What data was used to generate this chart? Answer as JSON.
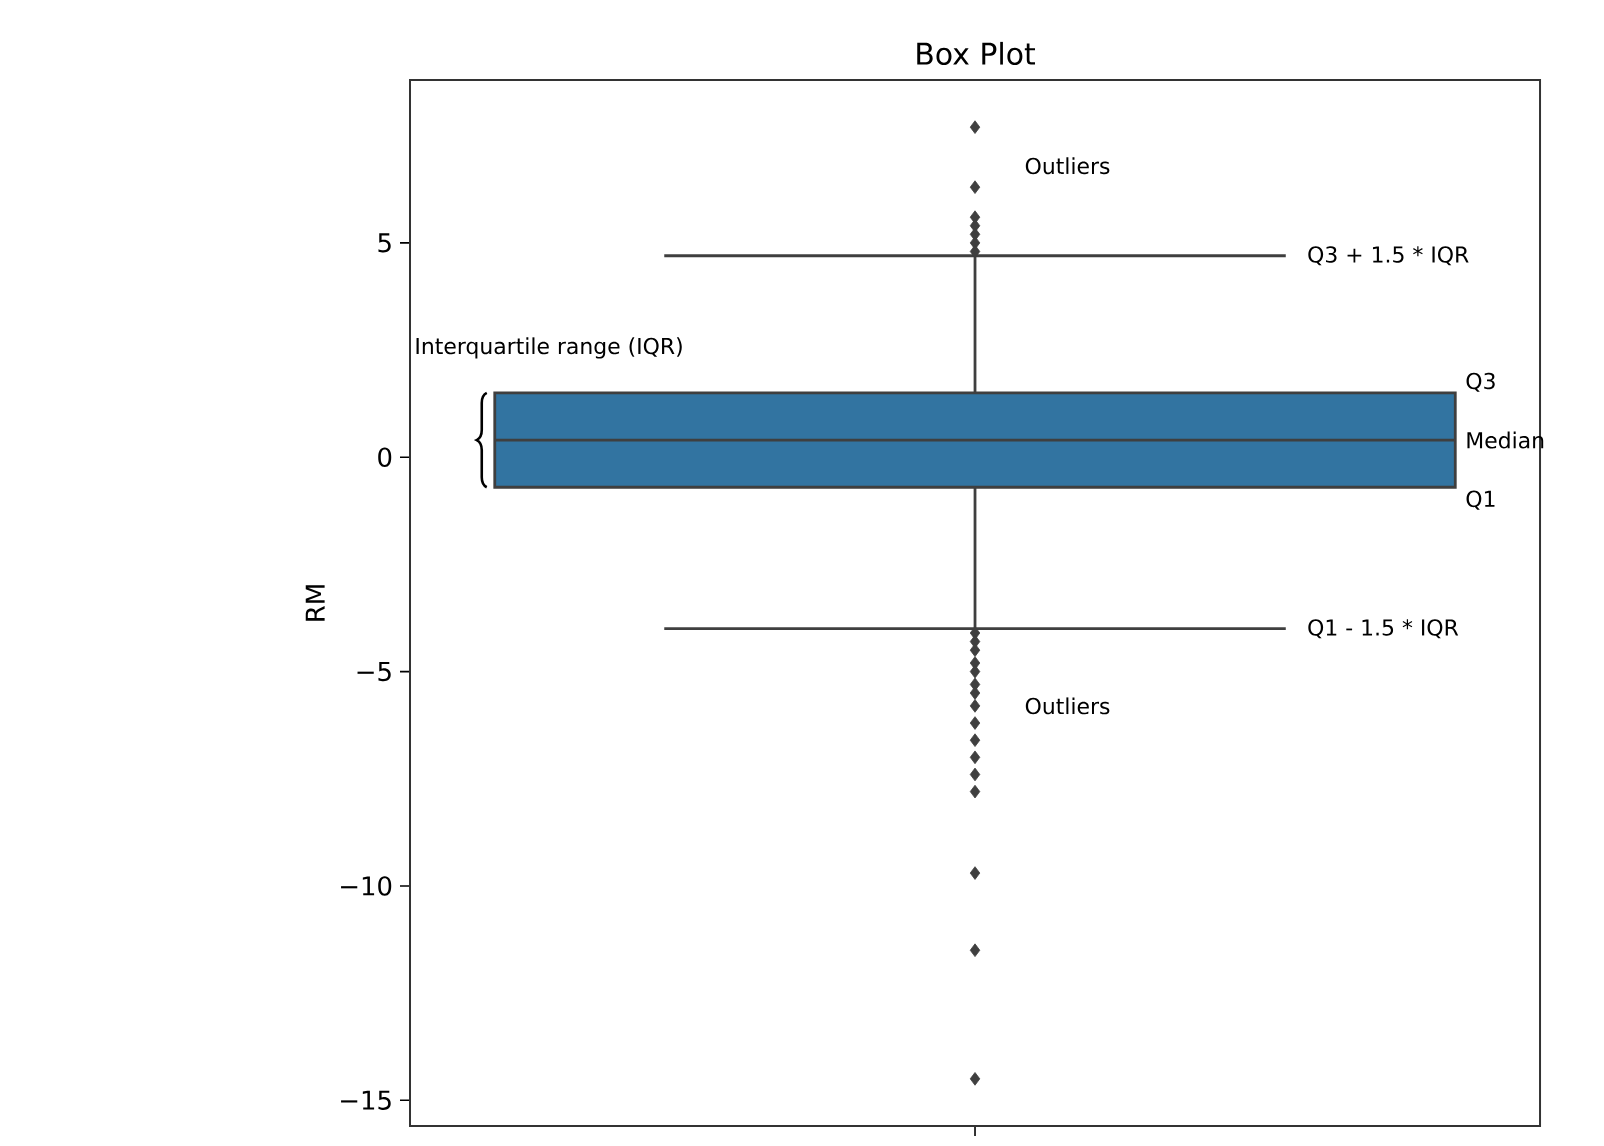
{
  "chart_data": {
    "type": "box",
    "title": "Box Plot",
    "ylabel": "RM",
    "categories": [
      null
    ],
    "boxes": [
      {
        "low": -4.0,
        "q1": -0.7,
        "median": 0.4,
        "q3": 1.5,
        "high": 4.7,
        "outliers": [
          7.7,
          6.3,
          5.6,
          5.4,
          5.2,
          5.0,
          4.8,
          -4.1,
          -4.3,
          -4.5,
          -4.8,
          -5.0,
          -5.3,
          -5.5,
          -5.8,
          -6.2,
          -6.6,
          -7.0,
          -7.4,
          -7.8,
          -9.7,
          -11.5,
          -14.5
        ]
      }
    ],
    "color": "#3274a1",
    "ylim": [
      -15.6,
      8.8
    ],
    "yticks": [
      {
        "value": -15,
        "label": "−15"
      },
      {
        "value": -10,
        "label": "−10"
      },
      {
        "value": -5,
        "label": "−5"
      },
      0,
      5
    ],
    "marker": "diamond",
    "annotations": [
      "Outliers",
      "Q3 + 1.5 * IQR",
      "Interquartile range (IQR)",
      "Q3",
      "Median",
      "Q1",
      "Q1 - 1.5 * IQR",
      "Outliers"
    ]
  }
}
